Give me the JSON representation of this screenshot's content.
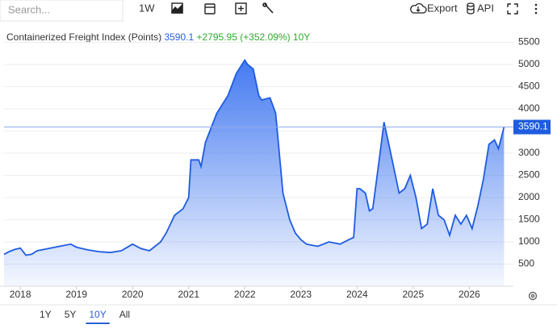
{
  "toolbar": {
    "search": "Search...",
    "interval": "1W",
    "export": "Export",
    "api": "API"
  },
  "ranges": [
    "1Y",
    "5Y",
    "10Y",
    "All"
  ],
  "active_range": "10Y",
  "chart_data": {
    "type": "area",
    "title": "Containerized Freight Index (Points)",
    "change": "+2795.95 (+352.09%)",
    "period": "10Y",
    "color": "#1f5ce0",
    "x": [
      2017.71,
      2017.8,
      2017.9,
      2018.0,
      2018.1,
      2018.2,
      2018.3,
      2018.5,
      2018.7,
      2018.9,
      2019.0,
      2019.2,
      2019.4,
      2019.6,
      2019.8,
      2020.0,
      2020.15,
      2020.3,
      2020.5,
      2020.6,
      2020.75,
      2020.9,
      2021.0,
      2021.04,
      2021.18,
      2021.22,
      2021.3,
      2021.5,
      2021.7,
      2021.85,
      2022.0,
      2022.05,
      2022.15,
      2022.25,
      2022.3,
      2022.45,
      2022.55,
      2022.68,
      2022.8,
      2022.9,
      2023.0,
      2023.1,
      2023.3,
      2023.5,
      2023.7,
      2023.85,
      2023.94,
      2024.0,
      2024.05,
      2024.15,
      2024.22,
      2024.28,
      2024.4,
      2024.48,
      2024.55,
      2024.65,
      2024.75,
      2024.85,
      2024.95,
      2025.05,
      2025.15,
      2025.25,
      2025.35,
      2025.45,
      2025.55,
      2025.65,
      2025.75,
      2025.85,
      2025.95,
      2026.05,
      2026.15,
      2026.25,
      2026.35,
      2026.45,
      2026.52,
      2026.62
    ],
    "values": [
      720,
      780,
      830,
      860,
      700,
      720,
      800,
      850,
      900,
      950,
      880,
      820,
      780,
      760,
      800,
      950,
      850,
      800,
      1000,
      1200,
      1600,
      1750,
      2000,
      2850,
      2850,
      2700,
      3250,
      3900,
      4300,
      4800,
      5100,
      5000,
      4900,
      4300,
      4200,
      4250,
      3900,
      2100,
      1500,
      1200,
      1050,
      950,
      900,
      1000,
      950,
      1050,
      1100,
      2200,
      2200,
      2100,
      1700,
      1750,
      2900,
      3700,
      3300,
      2700,
      2100,
      2200,
      2500,
      2000,
      1300,
      1400,
      2200,
      1600,
      1500,
      1150,
      1600,
      1400,
      1600,
      1300,
      1800,
      2400,
      3200,
      3300,
      3100,
      3590.1
    ],
    "xlim": [
      2017.71,
      2026.7
    ],
    "xticks": [
      2018,
      2019,
      2020,
      2021,
      2022,
      2023,
      2024,
      2025,
      2026
    ],
    "ylim": [
      0,
      5800
    ],
    "yticks": [
      500,
      1000,
      1500,
      2000,
      2500,
      3000,
      3500,
      4000,
      4500,
      5000,
      5500
    ]
  }
}
